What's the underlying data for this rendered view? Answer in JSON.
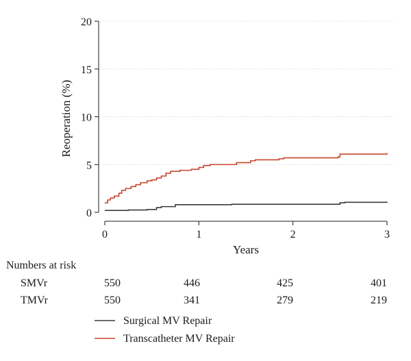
{
  "chart_data": {
    "type": "line",
    "xlabel": "Years",
    "ylabel": "Reoperation (%)",
    "xlim": [
      0,
      3
    ],
    "ylim": [
      0,
      20
    ],
    "x_ticks": [
      0,
      1,
      2,
      3
    ],
    "y_ticks": [
      0,
      5,
      10,
      15,
      20
    ],
    "x_tick_labels": [
      "0",
      "1",
      "2",
      "3"
    ],
    "y_tick_labels": [
      "0",
      "5",
      "10",
      "15",
      "20"
    ],
    "grid": "horizontal dotted",
    "series": [
      {
        "name": "Surgical MV Repair",
        "color": "#3a3a3a",
        "step": true,
        "points": [
          [
            0,
            0.2
          ],
          [
            0.25,
            0.25
          ],
          [
            0.45,
            0.3
          ],
          [
            0.55,
            0.5
          ],
          [
            0.6,
            0.6
          ],
          [
            0.75,
            0.8
          ],
          [
            1.35,
            0.85
          ],
          [
            2.5,
            1.0
          ],
          [
            2.55,
            1.05
          ],
          [
            3.0,
            1.1
          ]
        ]
      },
      {
        "name": "Transcatheter MV Repair",
        "color": "#c8462c",
        "step": true,
        "points": [
          [
            0,
            1.0
          ],
          [
            0.03,
            1.3
          ],
          [
            0.06,
            1.5
          ],
          [
            0.1,
            1.7
          ],
          [
            0.15,
            2.0
          ],
          [
            0.18,
            2.3
          ],
          [
            0.22,
            2.5
          ],
          [
            0.28,
            2.7
          ],
          [
            0.33,
            2.9
          ],
          [
            0.38,
            3.1
          ],
          [
            0.45,
            3.3
          ],
          [
            0.5,
            3.4
          ],
          [
            0.55,
            3.6
          ],
          [
            0.6,
            3.8
          ],
          [
            0.65,
            4.1
          ],
          [
            0.7,
            4.3
          ],
          [
            0.8,
            4.4
          ],
          [
            0.92,
            4.5
          ],
          [
            1.0,
            4.7
          ],
          [
            1.05,
            4.9
          ],
          [
            1.12,
            5.0
          ],
          [
            1.4,
            5.2
          ],
          [
            1.55,
            5.4
          ],
          [
            1.6,
            5.5
          ],
          [
            1.85,
            5.6
          ],
          [
            1.9,
            5.7
          ],
          [
            2.48,
            5.8
          ],
          [
            2.5,
            6.1
          ],
          [
            3.0,
            6.2
          ]
        ]
      }
    ],
    "risk_table": {
      "title": "Numbers at risk",
      "rows": [
        {
          "label": "SMVr",
          "values": [
            "550",
            "446",
            "425",
            "401"
          ]
        },
        {
          "label": "TMVr",
          "values": [
            "550",
            "341",
            "279",
            "219"
          ]
        }
      ]
    },
    "legend": {
      "placement": "bottom",
      "entries": [
        {
          "label": "Surgical MV Repair",
          "color": "#3a3a3a"
        },
        {
          "label": "Transcatheter MV Repair",
          "color": "#c8462c"
        }
      ]
    }
  }
}
